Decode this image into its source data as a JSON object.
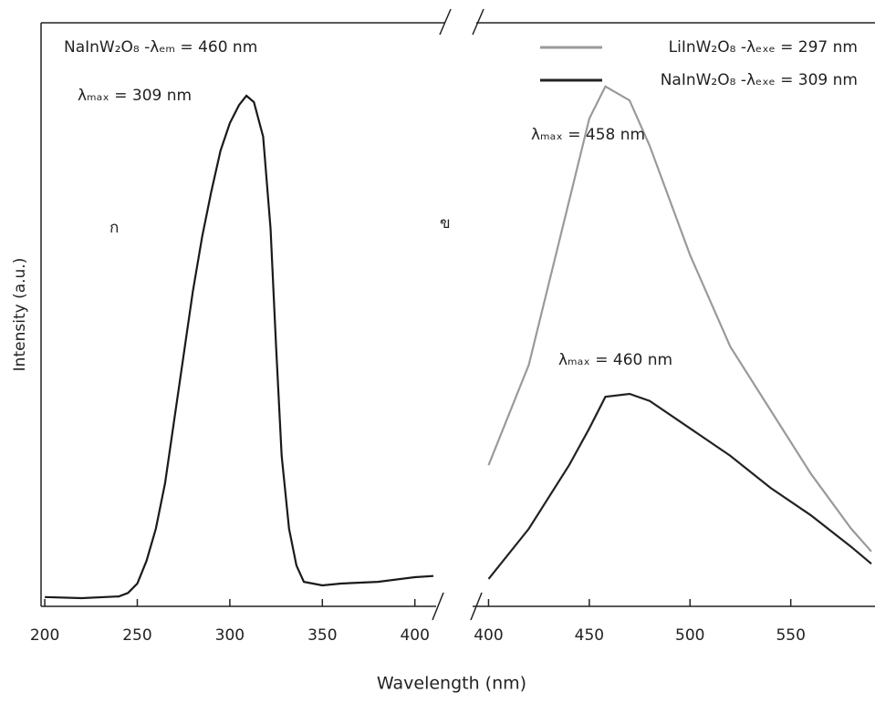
{
  "chart_data": [
    {
      "type": "line",
      "ylabel": "Intensity (a.u.)",
      "xlabel": "Wavelength (nm)",
      "x": [
        200,
        220,
        240,
        245,
        250,
        255,
        260,
        265,
        270,
        275,
        280,
        285,
        290,
        295,
        300,
        305,
        309,
        313,
        318,
        322,
        325,
        328,
        332,
        336,
        340,
        350,
        360,
        380,
        400,
        410
      ],
      "series": [
        {
          "name": "NaInW₂O₈ -λₑₘ = 460 nm",
          "color": "#1a1a1a",
          "values": [
            0.016,
            0.014,
            0.017,
            0.023,
            0.039,
            0.078,
            0.133,
            0.211,
            0.32,
            0.43,
            0.539,
            0.633,
            0.711,
            0.781,
            0.828,
            0.859,
            0.875,
            0.864,
            0.805,
            0.648,
            0.445,
            0.258,
            0.133,
            0.07,
            0.042,
            0.036,
            0.039,
            0.042,
            0.05,
            0.052
          ]
        }
      ],
      "annotations": [
        "λₘₐₓ = 309 nm",
        "ก"
      ],
      "xlim": [
        198,
        410
      ],
      "xticks": [
        200,
        250,
        300,
        350,
        400
      ],
      "ylim": [
        0,
        1
      ]
    },
    {
      "type": "line",
      "x": [
        400,
        420,
        440,
        450,
        458,
        470,
        480,
        500,
        520,
        540,
        560,
        580,
        590
      ],
      "series": [
        {
          "name": "LiInW₂O₈ -λₑₓₑ = 297 nm",
          "color": "#9a9a9a",
          "values": [
            0.242,
            0.414,
            0.695,
            0.836,
            0.891,
            0.867,
            0.789,
            0.602,
            0.445,
            0.336,
            0.227,
            0.133,
            0.094
          ]
        },
        {
          "name": "NaInW₂O₈ -λₑₓₑ = 309 nm",
          "color": "#222222",
          "values": [
            0.047,
            0.133,
            0.242,
            0.305,
            0.359,
            0.364,
            0.352,
            0.305,
            0.258,
            0.203,
            0.156,
            0.102,
            0.073
          ]
        }
      ],
      "annotations": [
        "λₘₐₓ = 458 nm",
        "ข",
        "λₘₐₓ = 460 nm"
      ],
      "xlim": [
        393,
        590
      ],
      "xticks": [
        400,
        450,
        500,
        550
      ],
      "ylim": [
        0,
        1
      ]
    }
  ]
}
